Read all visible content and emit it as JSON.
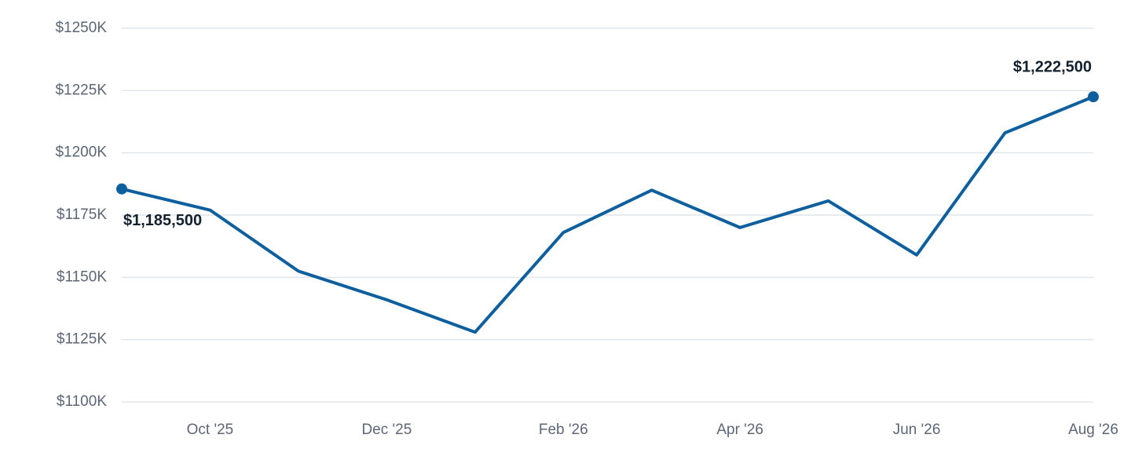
{
  "chart_data": {
    "type": "line",
    "categories": [
      null,
      "Oct '25",
      null,
      "Dec '25",
      null,
      "Feb '26",
      null,
      "Apr '26",
      null,
      "Jun '26",
      null,
      "Aug '26"
    ],
    "series": [
      {
        "color": "#0e5f9e",
        "values": [
          1185.5,
          1177,
          1152.5,
          1141,
          1128,
          1168,
          1185,
          1170,
          1180.7,
          1159,
          1208,
          1222.5
        ],
        "value_labels": [
          "$1,185,500",
          null,
          null,
          null,
          null,
          null,
          null,
          null,
          null,
          null,
          null,
          "$1,222,500"
        ]
      }
    ],
    "ylim": [
      1100,
      1250
    ],
    "yticks": [
      {
        "value": 1100,
        "label": "$1100K"
      },
      {
        "value": 1125,
        "label": "$1125K"
      },
      {
        "value": 1150,
        "label": "$1150K"
      },
      {
        "value": 1175,
        "label": "$1175K"
      },
      {
        "value": 1200,
        "label": "$1200K"
      },
      {
        "value": 1225,
        "label": "$1225K"
      },
      {
        "value": 1250,
        "label": "$1250K"
      }
    ],
    "grid": true
  }
}
